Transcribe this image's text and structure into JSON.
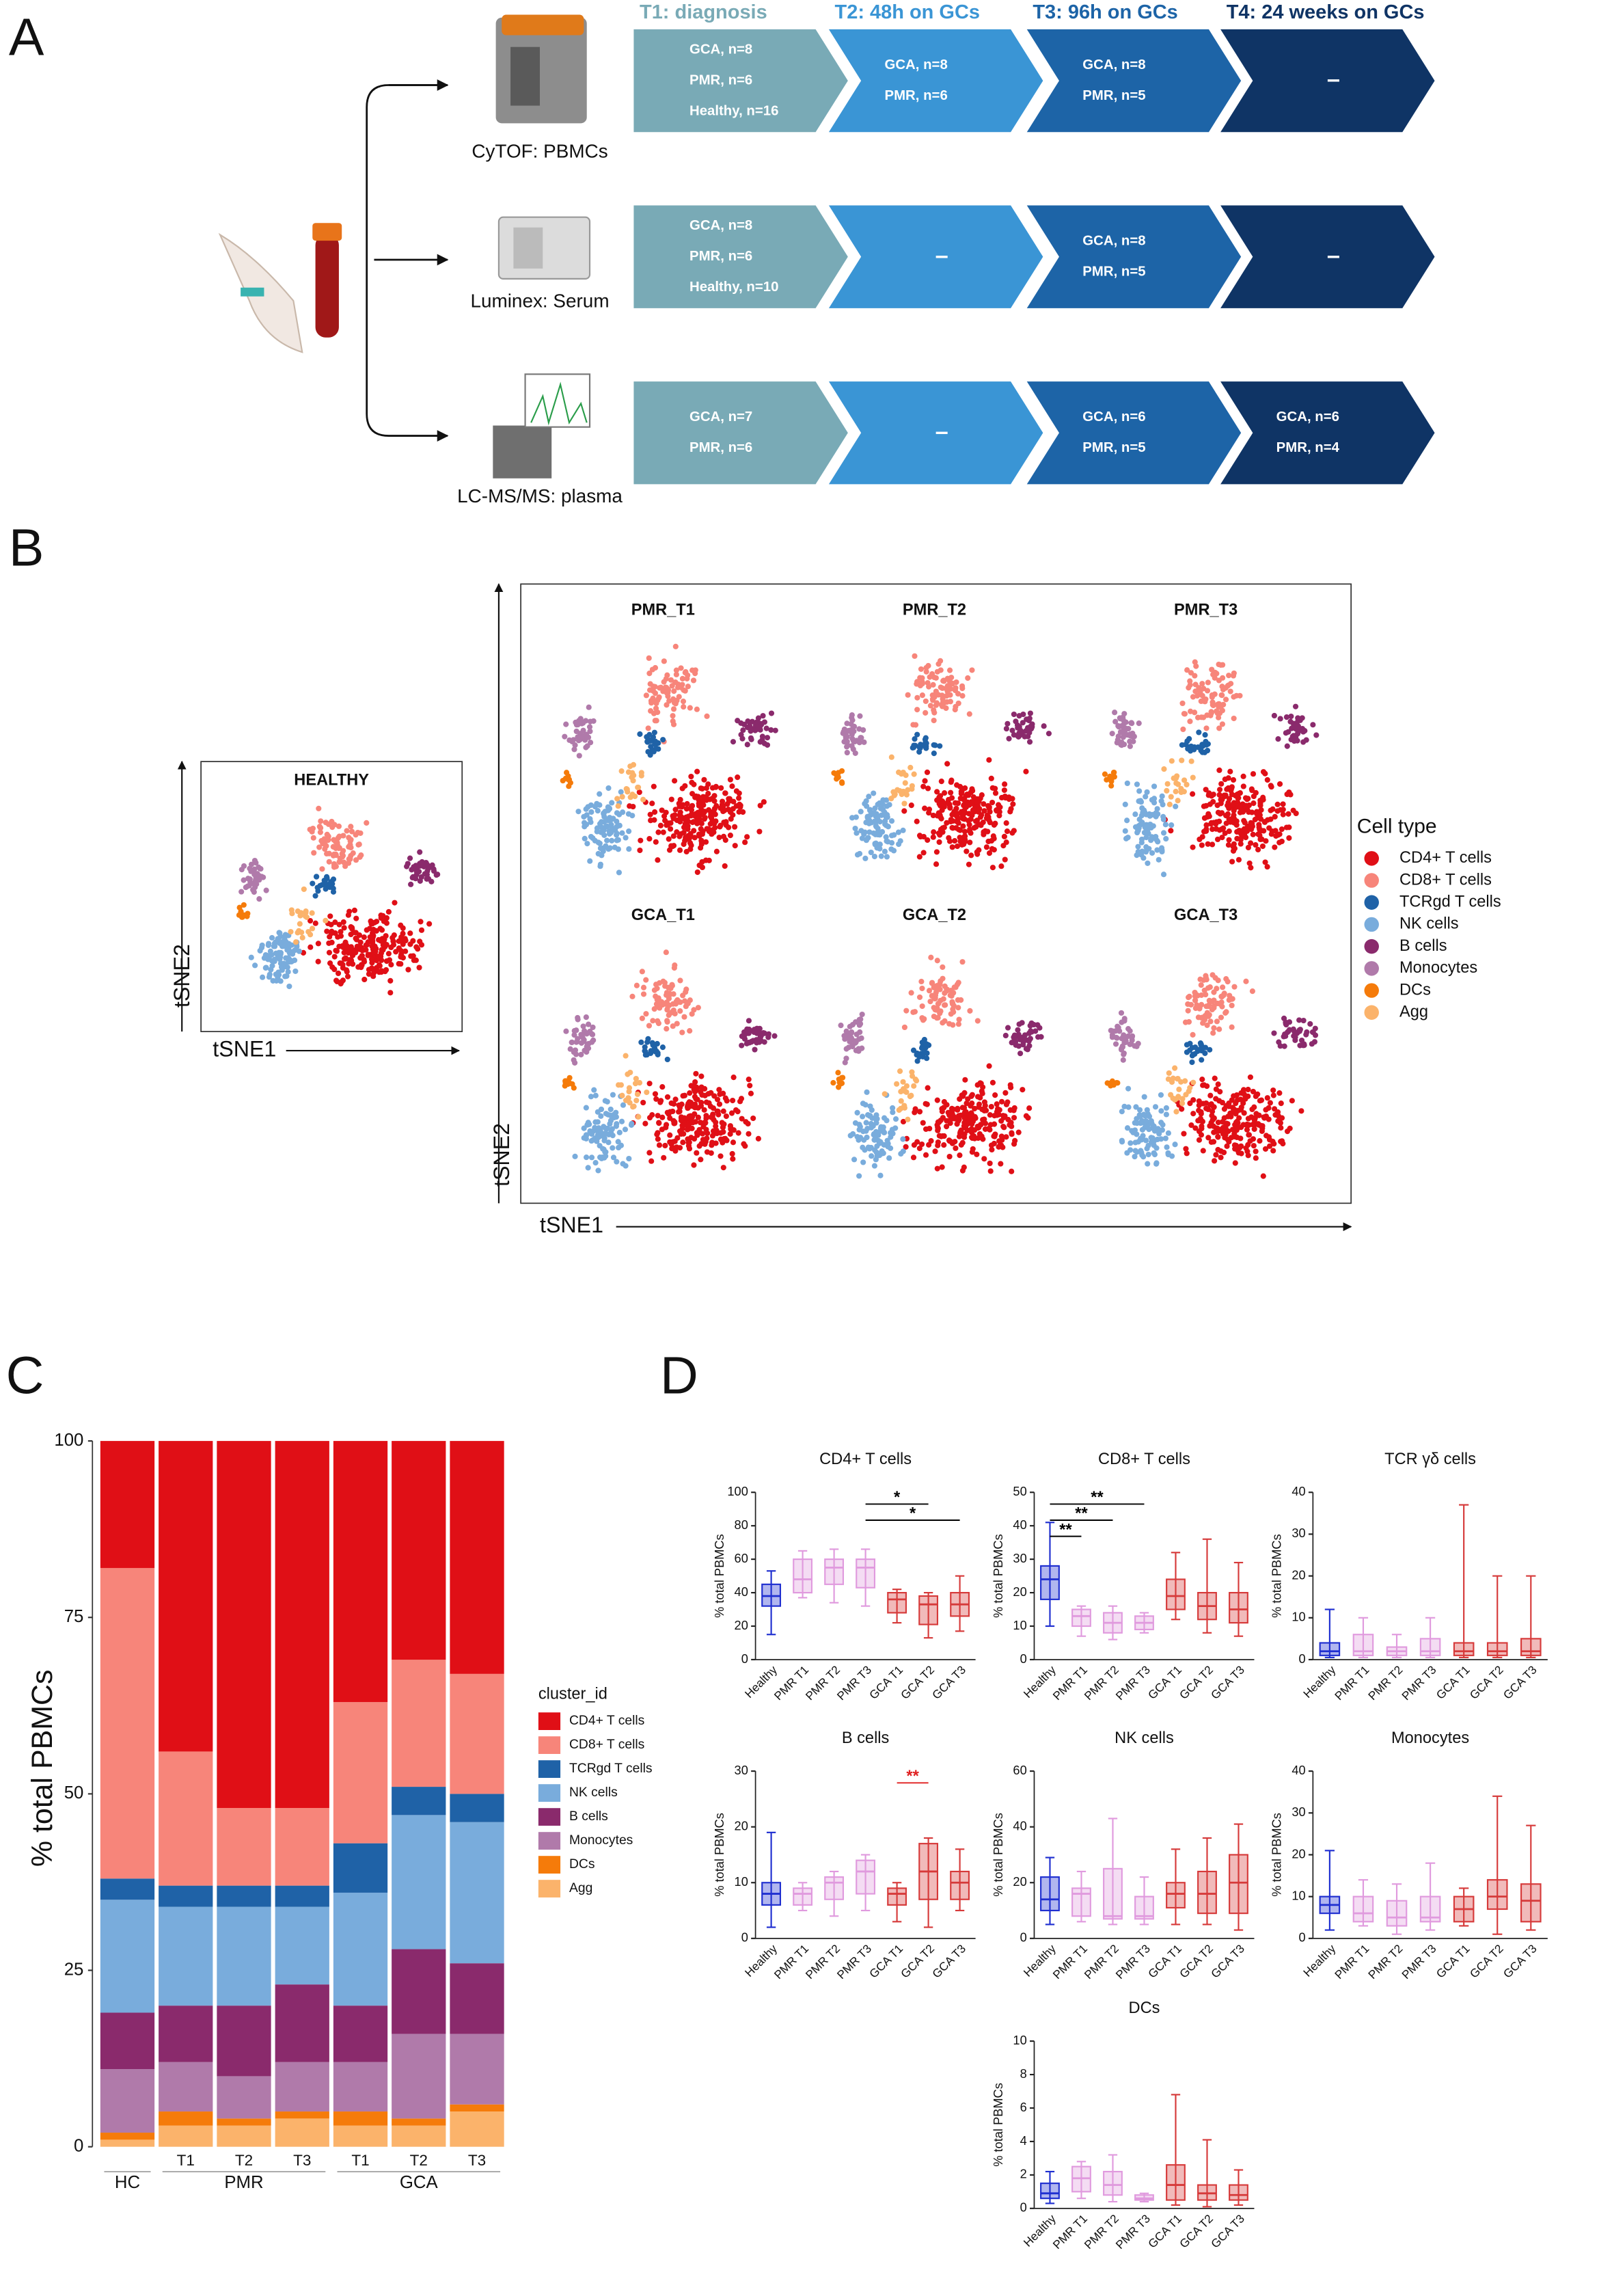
{
  "panel_labels": [
    "A",
    "B",
    "C",
    "D"
  ],
  "study_design": {
    "timepoints": [
      "T1: diagnosis",
      "T2: 48h on GCs",
      "T3: 96h on GCs",
      "T4: 24 weeks on GCs"
    ],
    "timepoint_colors": [
      "#79aab6",
      "#3a95d5",
      "#1d64a7",
      "#0f3465"
    ],
    "rows": [
      {
        "assay": "CyTOF: PBMCs",
        "cells": [
          [
            "GCA, n=8",
            "PMR, n=6",
            "Healthy, n=16"
          ],
          [
            "GCA, n=8",
            "PMR, n=6"
          ],
          [
            "GCA, n=8",
            "PMR, n=5"
          ],
          [
            "–"
          ]
        ]
      },
      {
        "assay": "Luminex: Serum",
        "cells": [
          [
            "GCA, n=8",
            "PMR, n=6",
            "Healthy, n=10"
          ],
          [
            "–"
          ],
          [
            "GCA, n=8",
            "PMR, n=5"
          ],
          [
            "–"
          ]
        ]
      },
      {
        "assay": "LC-MS/MS: plasma",
        "cells": [
          [
            "GCA, n=7",
            "PMR, n=6"
          ],
          [
            "–"
          ],
          [
            "GCA, n=6",
            "PMR, n=5"
          ],
          [
            "GCA, n=6",
            "PMR, n=4"
          ]
        ]
      }
    ]
  },
  "tsne": {
    "healthy_title": "HEALTHY",
    "panels": [
      "PMR_T1",
      "PMR_T2",
      "PMR_T3",
      "GCA_T1",
      "GCA_T2",
      "GCA_T3"
    ],
    "x_label": "tSNE1",
    "y_label": "tSNE2",
    "legend_title": "Cell type",
    "cell_types": [
      {
        "name": "CD4+ T cells",
        "color": "#e00f16"
      },
      {
        "name": "CD8+ T cells",
        "color": "#f7857a"
      },
      {
        "name": "TCRgd T cells",
        "color": "#1f62a7"
      },
      {
        "name": "NK cells",
        "color": "#79acdc"
      },
      {
        "name": "B cells",
        "color": "#8a2a6c"
      },
      {
        "name": "Monocytes",
        "color": "#b07aaa"
      },
      {
        "name": "DCs",
        "color": "#f57b0a"
      },
      {
        "name": "Agg",
        "color": "#fbb36b"
      }
    ]
  },
  "chart_data": [
    {
      "type": "stacked_bar",
      "ylabel": "% total PBMCs",
      "legend_title": "cluster_id",
      "categories": [
        null,
        "T1",
        "T2",
        "T3",
        "T1",
        "T2",
        "T3"
      ],
      "groups": [
        "HC",
        "PMR",
        "PMR",
        "PMR",
        "GCA",
        "GCA",
        "GCA"
      ],
      "ylim": [
        0,
        100
      ],
      "yticks": [
        0,
        25,
        50,
        75,
        100
      ],
      "series": [
        {
          "name": "CD4+ T cells",
          "color": "#e00f16",
          "values": [
            18,
            44,
            52,
            52,
            37,
            31,
            33
          ]
        },
        {
          "name": "CD8+ T cells",
          "color": "#f7857a",
          "values": [
            44,
            19,
            11,
            11,
            20,
            18,
            17
          ]
        },
        {
          "name": "TCRgd T cells",
          "color": "#1f62a7",
          "values": [
            3,
            3,
            3,
            3,
            7,
            4,
            4
          ]
        },
        {
          "name": "NK cells",
          "color": "#79acdc",
          "values": [
            16,
            14,
            14,
            11,
            16,
            19,
            20
          ]
        },
        {
          "name": "B cells",
          "color": "#8a2a6c",
          "values": [
            8,
            8,
            10,
            11,
            8,
            12,
            10
          ]
        },
        {
          "name": "Monocytes",
          "color": "#b07aaa",
          "values": [
            9,
            7,
            6,
            7,
            7,
            12,
            10
          ]
        },
        {
          "name": "DCs",
          "color": "#f57b0a",
          "values": [
            1,
            2,
            1,
            1,
            2,
            1,
            1
          ]
        },
        {
          "name": "Agg",
          "color": "#fbb36b",
          "values": [
            1,
            3,
            3,
            4,
            3,
            3,
            5
          ]
        }
      ]
    },
    {
      "type": "box",
      "title": "CD4+ T cells",
      "ylabel": "% total PBMCs",
      "categories": [
        "Healthy",
        "PMR T1",
        "PMR T2",
        "PMR T3",
        "GCA T1",
        "GCA T2",
        "GCA T3"
      ],
      "colors": [
        "#1f2fd0",
        "#e09ade",
        "#e09ade",
        "#e09ade",
        "#d63a3a",
        "#d63a3a",
        "#d63a3a"
      ],
      "ylim": [
        0,
        100
      ],
      "yticks": [
        0,
        20,
        40,
        60,
        80,
        100
      ],
      "boxes": [
        [
          15,
          32,
          38,
          45,
          53
        ],
        [
          37,
          40,
          48,
          60,
          65
        ],
        [
          34,
          45,
          55,
          60,
          66
        ],
        [
          32,
          43,
          55,
          60,
          66
        ],
        [
          22,
          28,
          36,
          40,
          42
        ],
        [
          13,
          21,
          33,
          38,
          40
        ],
        [
          17,
          26,
          33,
          40,
          50
        ]
      ],
      "annotations": [
        {
          "text": "*",
          "between": [
            "PMR T3",
            "GCA T3"
          ],
          "color": "#000000"
        },
        {
          "text": "*",
          "between": [
            "PMR T3",
            "GCA T2"
          ],
          "color": "#000000"
        }
      ]
    },
    {
      "type": "box",
      "title": "CD8+ T cells",
      "ylabel": "% total PBMCs",
      "categories": [
        "Healthy",
        "PMR T1",
        "PMR T2",
        "PMR T3",
        "GCA T1",
        "GCA T2",
        "GCA T3"
      ],
      "colors": [
        "#1f2fd0",
        "#e09ade",
        "#e09ade",
        "#e09ade",
        "#d63a3a",
        "#d63a3a",
        "#d63a3a"
      ],
      "ylim": [
        0,
        50
      ],
      "yticks": [
        0,
        10,
        20,
        30,
        40,
        50
      ],
      "boxes": [
        [
          10,
          18,
          24,
          28,
          41
        ],
        [
          7,
          10,
          13,
          15,
          16
        ],
        [
          6,
          8,
          11,
          14,
          16
        ],
        [
          8,
          9,
          11,
          13,
          14
        ],
        [
          12,
          15,
          19,
          24,
          32
        ],
        [
          8,
          12,
          16,
          20,
          36
        ],
        [
          7,
          11,
          15,
          20,
          29
        ]
      ],
      "annotations": [
        {
          "text": "**",
          "between": [
            "Healthy",
            "PMR T1"
          ],
          "color": "#000000"
        },
        {
          "text": "**",
          "between": [
            "Healthy",
            "PMR T2"
          ],
          "color": "#000000"
        },
        {
          "text": "**",
          "between": [
            "Healthy",
            "PMR T3"
          ],
          "color": "#000000"
        }
      ]
    },
    {
      "type": "box",
      "title": "TCR γδ cells",
      "ylabel": "% total PBMCs",
      "categories": [
        "Healthy",
        "PMR T1",
        "PMR T2",
        "PMR T3",
        "GCA T1",
        "GCA T2",
        "GCA T3"
      ],
      "colors": [
        "#1f2fd0",
        "#e09ade",
        "#e09ade",
        "#e09ade",
        "#d63a3a",
        "#d63a3a",
        "#d63a3a"
      ],
      "ylim": [
        0,
        40
      ],
      "yticks": [
        0,
        10,
        20,
        30,
        40
      ],
      "boxes": [
        [
          0.5,
          1,
          2,
          4,
          12
        ],
        [
          0.5,
          1,
          2,
          6,
          10
        ],
        [
          0.5,
          1,
          2,
          3,
          6
        ],
        [
          0.5,
          1,
          2,
          5,
          10
        ],
        [
          0.5,
          1,
          2,
          4,
          37
        ],
        [
          0.5,
          1,
          2,
          4,
          20
        ],
        [
          0.5,
          1,
          2,
          5,
          20
        ]
      ],
      "annotations": []
    },
    {
      "type": "box",
      "title": "B cells",
      "ylabel": "% total PBMCs",
      "categories": [
        "Healthy",
        "PMR T1",
        "PMR T2",
        "PMR T3",
        "GCA T1",
        "GCA T2",
        "GCA T3"
      ],
      "colors": [
        "#1f2fd0",
        "#e09ade",
        "#e09ade",
        "#e09ade",
        "#d63a3a",
        "#d63a3a",
        "#d63a3a"
      ],
      "ylim": [
        0,
        30
      ],
      "yticks": [
        0,
        10,
        20,
        30
      ],
      "boxes": [
        [
          2,
          6,
          8,
          10,
          19
        ],
        [
          5,
          6,
          8,
          9,
          10
        ],
        [
          4,
          7,
          10,
          11,
          12
        ],
        [
          5,
          8,
          12,
          14,
          15
        ],
        [
          3,
          6,
          8,
          9,
          10
        ],
        [
          2,
          7,
          12,
          17,
          18
        ],
        [
          5,
          7,
          10,
          12,
          16
        ]
      ],
      "annotations": [
        {
          "text": "**",
          "between": [
            "GCA T1",
            "GCA T2"
          ],
          "color": "#e02020"
        }
      ]
    },
    {
      "type": "box",
      "title": "NK cells",
      "ylabel": "% total PBMCs",
      "categories": [
        "Healthy",
        "PMR T1",
        "PMR T2",
        "PMR T3",
        "GCA T1",
        "GCA T2",
        "GCA T3"
      ],
      "colors": [
        "#1f2fd0",
        "#e09ade",
        "#e09ade",
        "#e09ade",
        "#d63a3a",
        "#d63a3a",
        "#d63a3a"
      ],
      "ylim": [
        0,
        60
      ],
      "yticks": [
        0,
        20,
        40,
        60
      ],
      "boxes": [
        [
          5,
          10,
          14,
          22,
          29
        ],
        [
          6,
          8,
          16,
          18,
          24
        ],
        [
          5,
          7,
          8,
          25,
          43
        ],
        [
          5,
          7,
          8,
          15,
          22
        ],
        [
          5,
          11,
          16,
          20,
          32
        ],
        [
          5,
          9,
          16,
          24,
          36
        ],
        [
          3,
          9,
          20,
          30,
          41
        ]
      ],
      "annotations": []
    },
    {
      "type": "box",
      "title": "Monocytes",
      "ylabel": "% total PBMCs",
      "categories": [
        "Healthy",
        "PMR T1",
        "PMR T2",
        "PMR T3",
        "GCA T1",
        "GCA T2",
        "GCA T3"
      ],
      "colors": [
        "#1f2fd0",
        "#e09ade",
        "#e09ade",
        "#e09ade",
        "#d63a3a",
        "#d63a3a",
        "#d63a3a"
      ],
      "ylim": [
        0,
        40
      ],
      "yticks": [
        0,
        10,
        20,
        30,
        40
      ],
      "boxes": [
        [
          2,
          6,
          8,
          10,
          21
        ],
        [
          3,
          4,
          6,
          10,
          14
        ],
        [
          1,
          3,
          5,
          9,
          13
        ],
        [
          2,
          4,
          5,
          10,
          18
        ],
        [
          3,
          4,
          7,
          10,
          12
        ],
        [
          1,
          7,
          10,
          14,
          34
        ],
        [
          2,
          4,
          9,
          13,
          27
        ]
      ],
      "annotations": []
    },
    {
      "type": "box",
      "title": "DCs",
      "ylabel": "% total PBMCs",
      "categories": [
        "Healthy",
        "PMR T1",
        "PMR T2",
        "PMR T3",
        "GCA T1",
        "GCA T2",
        "GCA T3"
      ],
      "colors": [
        "#1f2fd0",
        "#e09ade",
        "#e09ade",
        "#e09ade",
        "#d63a3a",
        "#d63a3a",
        "#d63a3a"
      ],
      "ylim": [
        0,
        10
      ],
      "yticks": [
        0,
        2,
        4,
        6,
        8,
        10
      ],
      "boxes": [
        [
          0.3,
          0.6,
          0.9,
          1.5,
          2.2
        ],
        [
          0.6,
          1,
          1.8,
          2.5,
          2.8
        ],
        [
          0.4,
          0.8,
          1.4,
          2.2,
          3.2
        ],
        [
          0.4,
          0.5,
          0.6,
          0.8,
          0.9
        ],
        [
          0.2,
          0.5,
          1.4,
          2.6,
          6.8
        ],
        [
          0.1,
          0.5,
          0.9,
          1.4,
          4.1
        ],
        [
          0.2,
          0.5,
          0.8,
          1.4,
          2.3
        ]
      ],
      "annotations": []
    }
  ]
}
